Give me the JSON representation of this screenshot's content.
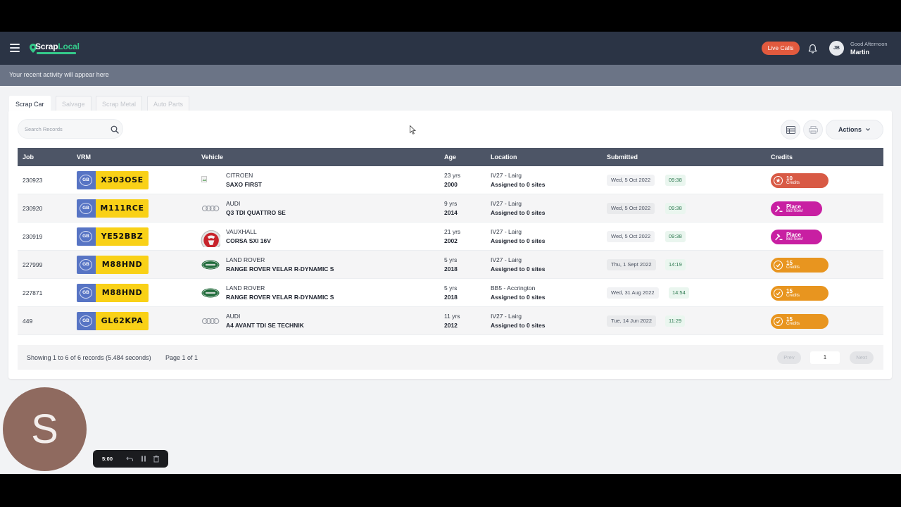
{
  "app": {
    "logo_text_left": "Scrap",
    "logo_text_right": "Local",
    "live_calls_label": "Live Calls",
    "avatar_initials": "JB",
    "greeting": "Good Afternoon",
    "user_name": "Martin"
  },
  "activity_text": "Your recent activity will appear here",
  "tabs": [
    {
      "label": "Scrap Car",
      "active": true
    },
    {
      "label": "Salvage",
      "active": false
    },
    {
      "label": "Scrap Metal",
      "active": false
    },
    {
      "label": "Auto Parts",
      "active": false
    }
  ],
  "search": {
    "placeholder": "Search Records"
  },
  "actions_label": "Actions",
  "table": {
    "headers": {
      "job": "Job",
      "vrm": "VRM",
      "vehicle": "Vehicle",
      "age": "Age",
      "location": "Location",
      "submitted": "Submitted",
      "credits": "Credits"
    },
    "rows": [
      {
        "job": "230923",
        "gb": "GB",
        "reg": "X303OSE",
        "make": "CITROEN",
        "model": "SAXO FIRST",
        "logo": "broken-image-icon",
        "age": "23 yrs",
        "year": "2000",
        "location": "IV27 - Lairg",
        "assigned": "Assigned to 0 sites",
        "date": "Wed, 5 Oct 2022",
        "time": "09:38",
        "credit_type": "credits",
        "credit_value": "10",
        "credit_label": "Credits",
        "credit_color": "#d85a45"
      },
      {
        "job": "230920",
        "gb": "GB",
        "reg": "M111RCE",
        "make": "AUDI",
        "model": "Q3 TDI QUATTRO SE",
        "logo": "audi-rings-icon",
        "age": "9 yrs",
        "year": "2014",
        "location": "IV27 - Lairg",
        "assigned": "Assigned to 0 sites",
        "date": "Wed, 5 Oct 2022",
        "time": "09:38",
        "credit_type": "bid",
        "credit_value": "Place",
        "credit_label": "Bid Now!",
        "credit_color": "#c81fa2"
      },
      {
        "job": "230919",
        "gb": "GB",
        "reg": "YE52BBZ",
        "make": "VAUXHALL",
        "model": "CORSA SXI 16V",
        "logo": "vauxhall-logo-icon",
        "age": "21 yrs",
        "year": "2002",
        "location": "IV27 - Lairg",
        "assigned": "Assigned to 0 sites",
        "date": "Wed, 5 Oct 2022",
        "time": "09:38",
        "credit_type": "bid",
        "credit_value": "Place",
        "credit_label": "Bid Now!",
        "credit_color": "#c81fa2"
      },
      {
        "job": "227999",
        "gb": "GB",
        "reg": "M88HND",
        "make": "LAND ROVER",
        "model": "RANGE ROVER VELAR R-DYNAMIC S",
        "logo": "land-rover-logo-icon",
        "age": "5 yrs",
        "year": "2018",
        "location": "IV27 - Lairg",
        "assigned": "Assigned to 0 sites",
        "date": "Thu, 1 Sept 2022",
        "time": "14:19",
        "credit_type": "credits",
        "credit_value": "15",
        "credit_label": "Credits",
        "credit_color": "#e8951f"
      },
      {
        "job": "227871",
        "gb": "GB",
        "reg": "M88HND",
        "make": "LAND ROVER",
        "model": "RANGE ROVER VELAR R-DYNAMIC S",
        "logo": "land-rover-logo-icon",
        "age": "5 yrs",
        "year": "2018",
        "location": "BB5 - Accrington",
        "assigned": "Assigned to 0 sites",
        "date": "Wed, 31 Aug 2022",
        "time": "14:54",
        "credit_type": "credits",
        "credit_value": "15",
        "credit_label": "Credits",
        "credit_color": "#e8951f"
      },
      {
        "job": "449",
        "gb": "GB",
        "reg": "GL62KPA",
        "make": "AUDI",
        "model": "A4 AVANT TDI SE TECHNIK",
        "logo": "audi-rings-icon",
        "age": "11 yrs",
        "year": "2012",
        "location": "IV27 - Lairg",
        "assigned": "Assigned to 0 sites",
        "date": "Tue, 14 Jun 2022",
        "time": "11:29",
        "credit_type": "credits",
        "credit_value": "15",
        "credit_label": "Credits",
        "credit_color": "#e8951f"
      }
    ]
  },
  "footer": {
    "summary": "Showing 1 to 6 of 6 records (5.484 seconds)",
    "page_info": "Page 1 of 1",
    "prev_label": "Prev",
    "page_number": "1",
    "next_label": "Next"
  },
  "overlay": {
    "webcam_initial": "S",
    "timer": "5:00"
  },
  "colors": {
    "navbar": "#2b3445",
    "activity_bar": "#6b7486",
    "table_header": "#4d5566",
    "plate_yellow": "#f9d117",
    "plate_blue": "#5774c4",
    "live_calls": "#e25a3e",
    "brand_green": "#34c98a"
  }
}
